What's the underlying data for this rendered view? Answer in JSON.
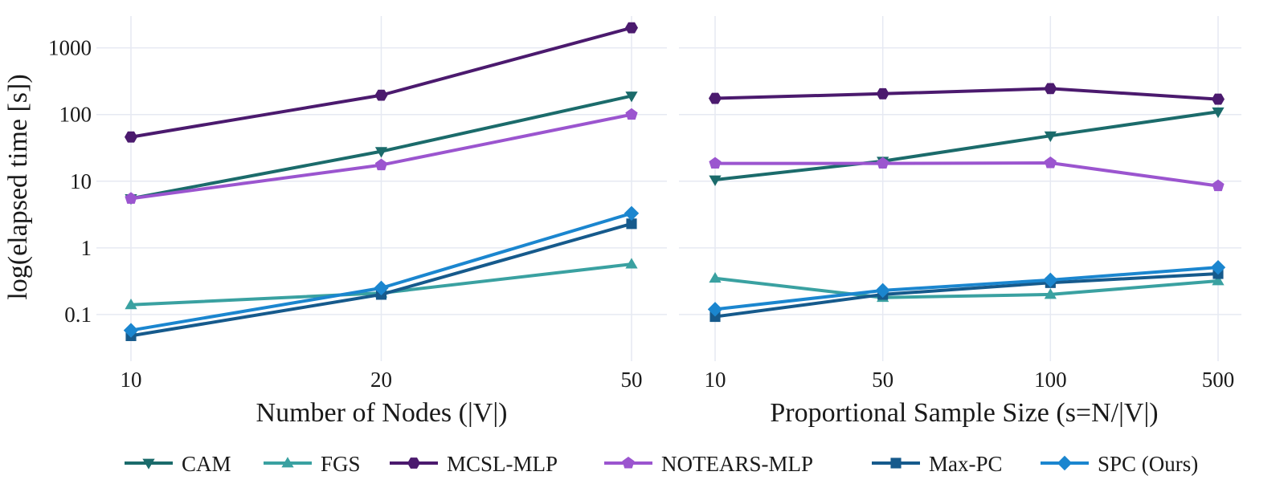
{
  "chart_data": {
    "type": "line",
    "yscale": "log",
    "ylabel": "log(elapsed time [s])",
    "ylim": [
      0.02,
      3000
    ],
    "yticks": [
      0.1,
      1,
      10,
      100,
      1000
    ],
    "ytick_labels": [
      "0.1",
      "1",
      "10",
      "100",
      "1000"
    ],
    "grid": true,
    "legend_position": "bottom",
    "series_styles": [
      {
        "name": "CAM",
        "color": "#1b6b6b",
        "marker": "triangle-down"
      },
      {
        "name": "FGS",
        "color": "#3aa1a1",
        "marker": "triangle-up"
      },
      {
        "name": "MCSL-MLP",
        "color": "#4b1a6e",
        "marker": "hexagon"
      },
      {
        "name": "NOTEARS-MLP",
        "color": "#9b55cf",
        "marker": "pentagon"
      },
      {
        "name": "Max-PC",
        "color": "#165a8c",
        "marker": "square"
      },
      {
        "name": "SPC (Ours)",
        "color": "#1b86cf",
        "marker": "diamond"
      }
    ],
    "panels": [
      {
        "xlabel": "Number of Nodes (|V|)",
        "categories": [
          "10",
          "20",
          "50"
        ],
        "series": [
          {
            "name": "CAM",
            "values": [
              5.5,
              28,
              190
            ]
          },
          {
            "name": "FGS",
            "values": [
              0.14,
              0.21,
              0.57
            ]
          },
          {
            "name": "MCSL-MLP",
            "values": [
              46,
              195,
              2000
            ]
          },
          {
            "name": "NOTEARS-MLP",
            "values": [
              5.5,
              17.5,
              100
            ]
          },
          {
            "name": "Max-PC",
            "values": [
              0.048,
              0.2,
              2.3
            ]
          },
          {
            "name": "SPC (Ours)",
            "values": [
              0.058,
              0.25,
              3.3
            ]
          }
        ]
      },
      {
        "xlabel": "Proportional Sample Size (s=N/|V|)",
        "categories": [
          "10",
          "50",
          "100",
          "500"
        ],
        "series": [
          {
            "name": "CAM",
            "values": [
              10.5,
              20,
              48,
              110
            ]
          },
          {
            "name": "FGS",
            "values": [
              0.35,
              0.18,
              0.2,
              0.32
            ]
          },
          {
            "name": "MCSL-MLP",
            "values": [
              175,
              205,
              245,
              170
            ]
          },
          {
            "name": "NOTEARS-MLP",
            "values": [
              18.5,
              18.5,
              18.8,
              8.5
            ]
          },
          {
            "name": "Max-PC",
            "values": [
              0.093,
              0.2,
              0.3,
              0.41
            ]
          },
          {
            "name": "SPC (Ours)",
            "values": [
              0.12,
              0.23,
              0.33,
              0.51
            ]
          }
        ]
      }
    ]
  }
}
